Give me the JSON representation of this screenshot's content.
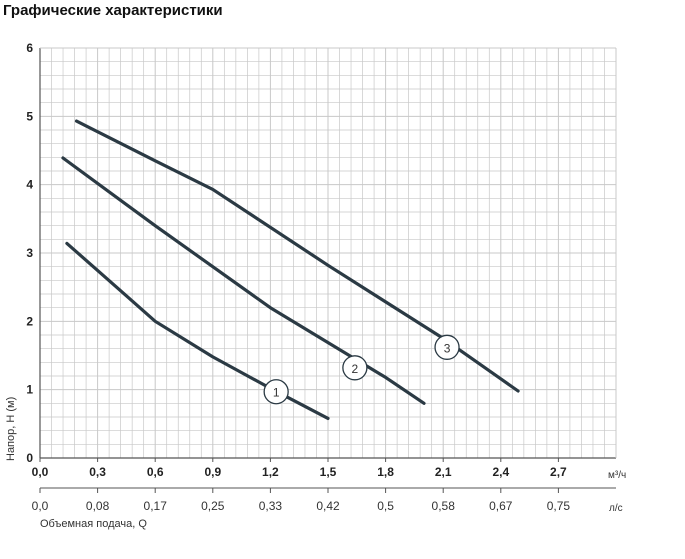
{
  "page": {
    "title": "Графические характеристики"
  },
  "chart_data": {
    "type": "line",
    "title": "Графические характеристики",
    "ylabel": "Напор, Н (м)",
    "xlabel": "Объемная   подача, Q",
    "x_unit": "м³/ч",
    "x2_unit": "л/с",
    "xlim": [
      0,
      3.0
    ],
    "ylim": [
      0,
      6
    ],
    "grid": true,
    "y_ticks": [
      "0",
      "1",
      "2",
      "3",
      "4",
      "5",
      "6"
    ],
    "x_ticks": [
      {
        "value": 0.0,
        "label": "0,0"
      },
      {
        "value": 0.3,
        "label": "0,3"
      },
      {
        "value": 0.6,
        "label": "0,6"
      },
      {
        "value": 0.9,
        "label": "0,9"
      },
      {
        "value": 1.2,
        "label": "1,2"
      },
      {
        "value": 1.5,
        "label": "1,5"
      },
      {
        "value": 1.8,
        "label": "1,8"
      },
      {
        "value": 2.1,
        "label": "2,1"
      },
      {
        "value": 2.4,
        "label": "2,4"
      },
      {
        "value": 2.7,
        "label": "2,7"
      }
    ],
    "x2_ticks": [
      {
        "value": 0.0,
        "label": "0,0"
      },
      {
        "value": 0.3,
        "label": "0,08"
      },
      {
        "value": 0.6,
        "label": "0,17"
      },
      {
        "value": 0.9,
        "label": "0,25"
      },
      {
        "value": 1.2,
        "label": "0,33"
      },
      {
        "value": 1.5,
        "label": "0,42"
      },
      {
        "value": 1.8,
        "label": "0,5"
      },
      {
        "value": 2.1,
        "label": "0,58"
      },
      {
        "value": 2.4,
        "label": "0,67"
      },
      {
        "value": 2.7,
        "label": "0,75"
      }
    ],
    "series": [
      {
        "name": "1",
        "points": [
          [
            0.14,
            3.14
          ],
          [
            0.6,
            2.0
          ],
          [
            0.9,
            1.48
          ],
          [
            1.2,
            1.02
          ],
          [
            1.5,
            0.58
          ]
        ],
        "label_at": [
          1.23,
          0.97
        ]
      },
      {
        "name": "2",
        "points": [
          [
            0.12,
            4.39
          ],
          [
            0.6,
            3.4
          ],
          [
            1.2,
            2.2
          ],
          [
            1.8,
            1.18
          ],
          [
            2.0,
            0.8
          ]
        ],
        "label_at": [
          1.64,
          1.32
        ]
      },
      {
        "name": "3",
        "points": [
          [
            0.19,
            4.93
          ],
          [
            0.6,
            4.35
          ],
          [
            0.9,
            3.93
          ],
          [
            1.5,
            2.82
          ],
          [
            2.1,
            1.75
          ],
          [
            2.49,
            0.98
          ]
        ],
        "label_at": [
          2.12,
          1.62
        ]
      }
    ],
    "colors": {
      "curve": "#2b3a44",
      "grid": "#c8c8c8",
      "axis": "#555555",
      "label_ring": "#2b3a44"
    }
  }
}
